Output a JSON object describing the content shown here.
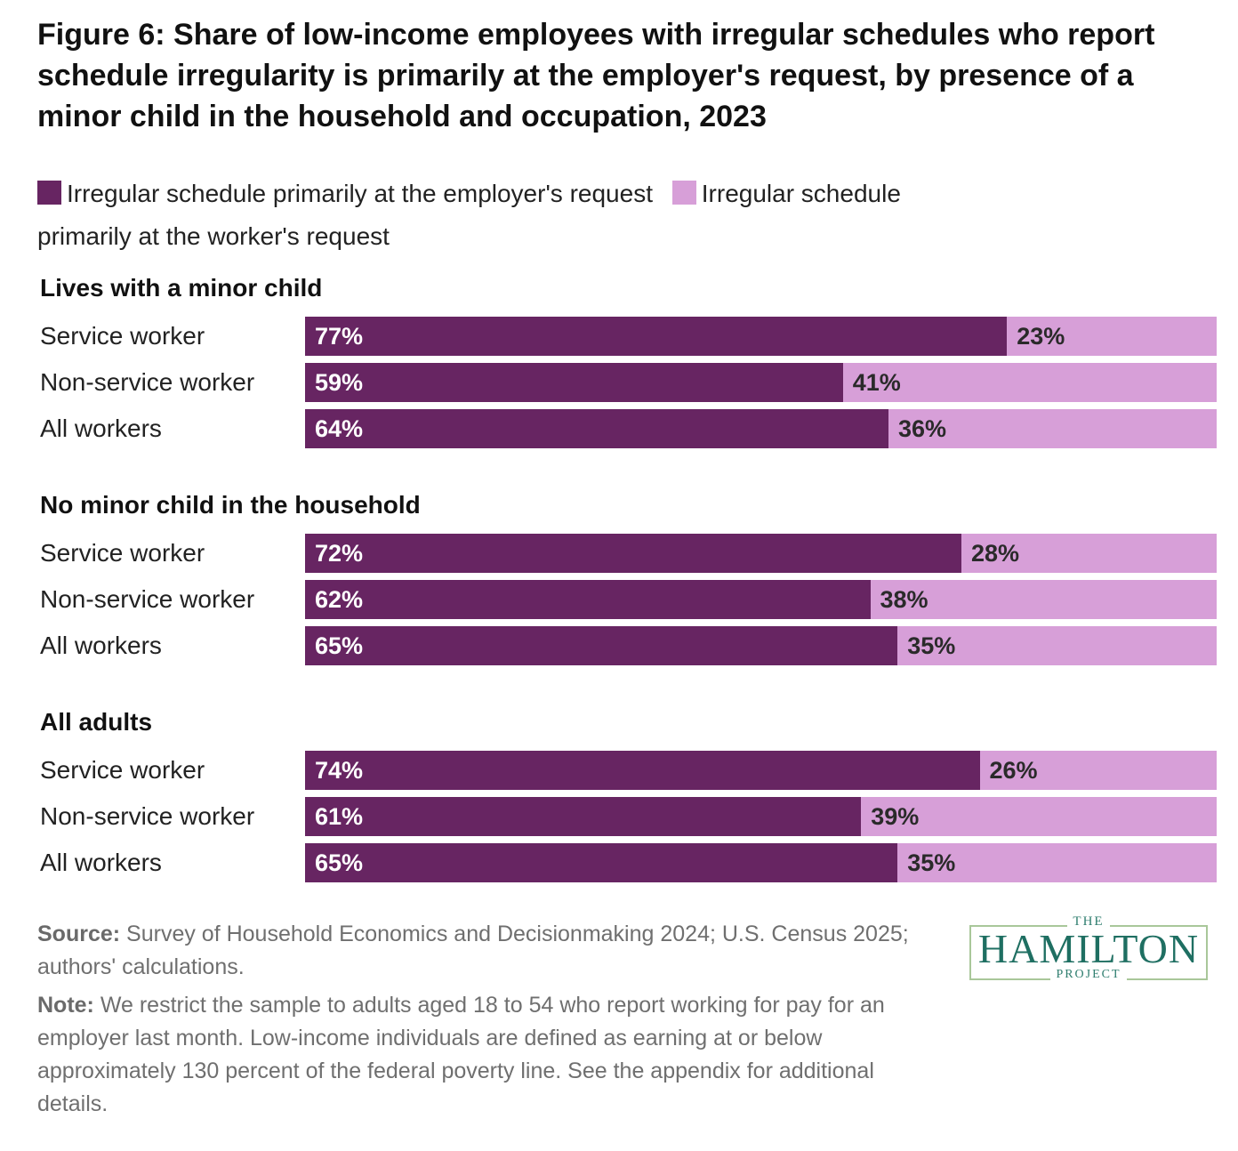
{
  "chart_data": {
    "type": "bar",
    "orientation": "horizontal",
    "stacked": true,
    "title": "Figure 6: Share of low-income employees with irregular schedules who report schedule irregularity is primarily at the employer's request, by presence of a minor child in the household and occupation, 2023",
    "legend": [
      {
        "key": "employer",
        "label": "Irregular schedule primarily at the employer's request",
        "color": "#672562"
      },
      {
        "key": "worker",
        "label": "Irregular schedule primarily at the worker's request",
        "color": "#d79fd8"
      }
    ],
    "xlim": [
      0,
      100
    ],
    "groups": [
      {
        "name": "Lives with a minor child",
        "rows": [
          {
            "label": "Service worker",
            "employer": 77,
            "worker": 23,
            "employer_text": "77%",
            "worker_text": "23%"
          },
          {
            "label": "Non-service worker",
            "employer": 59,
            "worker": 41,
            "employer_text": "59%",
            "worker_text": "41%"
          },
          {
            "label": "All workers",
            "employer": 64,
            "worker": 36,
            "employer_text": "64%",
            "worker_text": "36%"
          }
        ]
      },
      {
        "name": "No minor child in the household",
        "rows": [
          {
            "label": "Service worker",
            "employer": 72,
            "worker": 28,
            "employer_text": "72%",
            "worker_text": "28%"
          },
          {
            "label": "Non-service worker",
            "employer": 62,
            "worker": 38,
            "employer_text": "62%",
            "worker_text": "38%"
          },
          {
            "label": "All workers",
            "employer": 65,
            "worker": 35,
            "employer_text": "65%",
            "worker_text": "35%"
          }
        ]
      },
      {
        "name": "All adults",
        "rows": [
          {
            "label": "Service worker",
            "employer": 74,
            "worker": 26,
            "employer_text": "74%",
            "worker_text": "26%"
          },
          {
            "label": "Non-service worker",
            "employer": 61,
            "worker": 39,
            "employer_text": "61%",
            "worker_text": "39%"
          },
          {
            "label": "All workers",
            "employer": 65,
            "worker": 35,
            "employer_text": "65%",
            "worker_text": "35%"
          }
        ]
      }
    ]
  },
  "footer": {
    "source_label": "Source:",
    "source_text": "Survey of Household Economics and Decisionmaking 2024; U.S. Census 2025; authors' calculations.",
    "note_label": "Note:",
    "note_text": "We restrict the sample to adults aged 18 to 54 who report working for pay for an employer last month. Low-income individuals are defined as earning at or below approximately 130 percent of the federal poverty line. See the appendix for additional details."
  },
  "logo": {
    "top": "THE",
    "main": "HAMILTON",
    "bottom": "PROJECT"
  }
}
